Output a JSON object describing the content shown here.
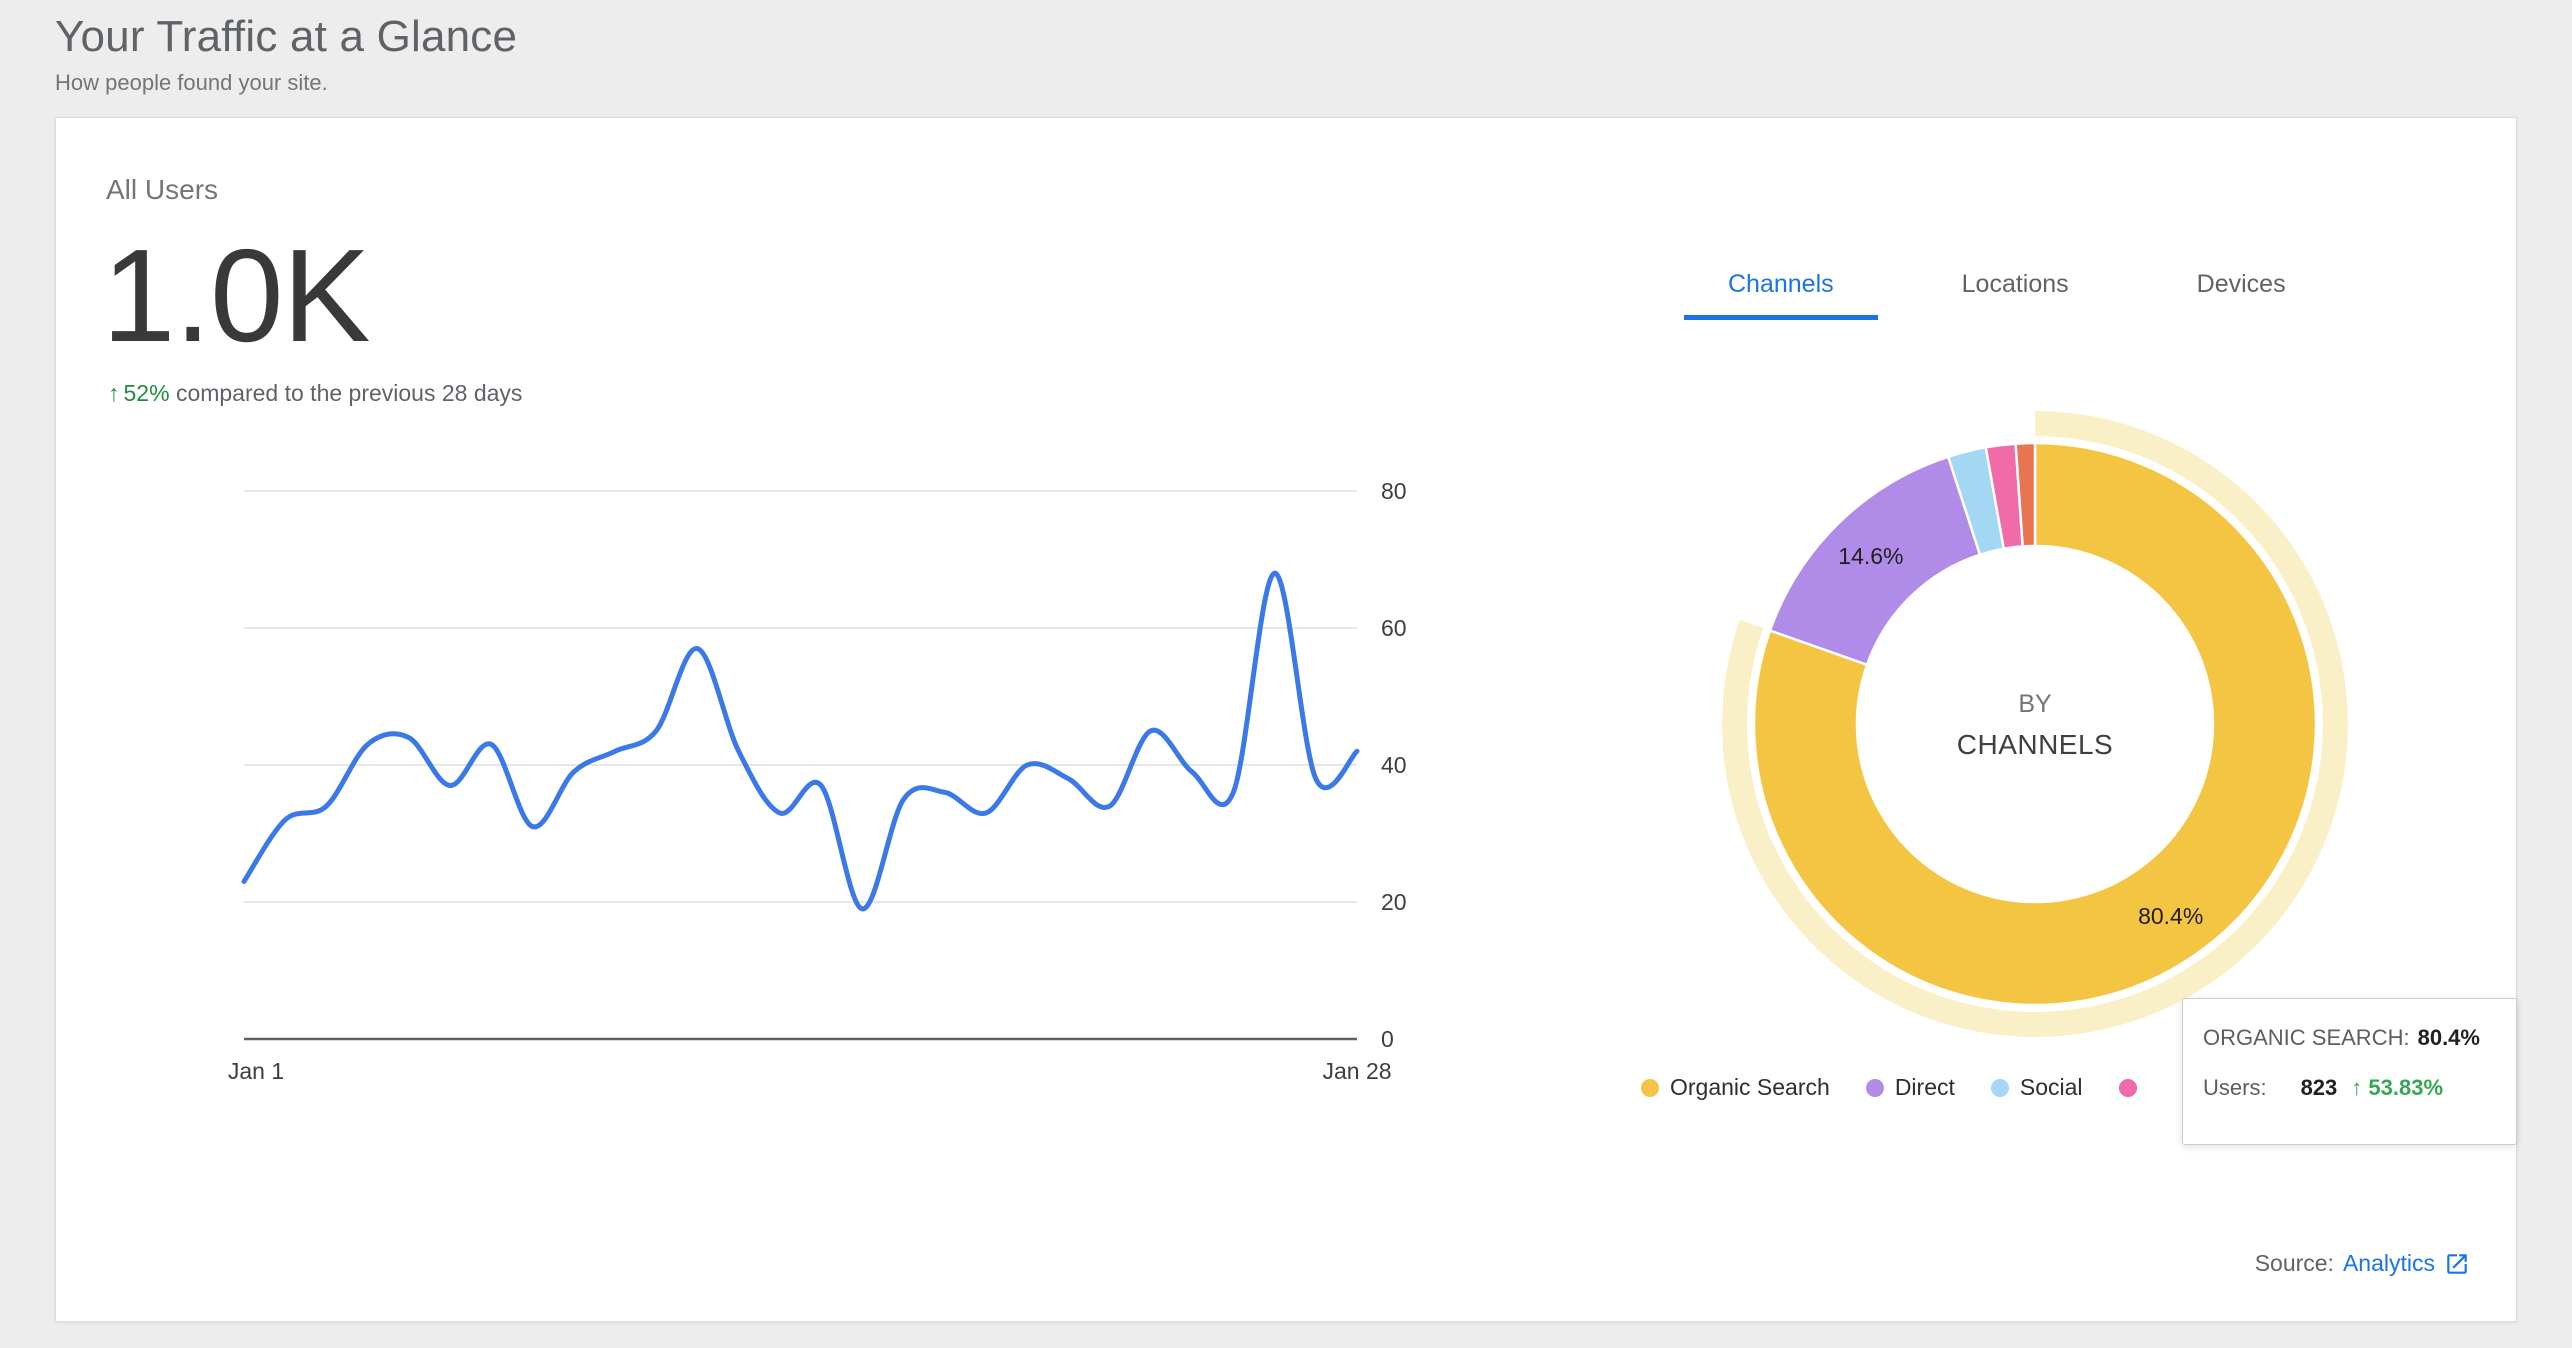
{
  "header": {
    "title": "Your Traffic at a Glance",
    "subtitle": "How people found your site."
  },
  "summary": {
    "metric_label": "All Users",
    "metric_value": "1.0K",
    "trend_arrow": "↑",
    "trend_percent": "52%",
    "trend_text": "compared to the previous 28 days"
  },
  "tabs": [
    {
      "label": "Channels",
      "active": true
    },
    {
      "label": "Locations",
      "active": false
    },
    {
      "label": "Devices",
      "active": false
    }
  ],
  "donut_center": {
    "line1": "BY",
    "line2": "CHANNELS"
  },
  "legend": [
    {
      "label": "Organic Search",
      "color": "#F4C542"
    },
    {
      "label": "Direct",
      "color": "#B18BE8"
    },
    {
      "label": "Social",
      "color": "#A3D7F4"
    },
    {
      "label": "",
      "color": "#F06BA8"
    }
  ],
  "tooltip": {
    "title_label": "ORGANIC SEARCH:",
    "title_value": "80.4%",
    "users_label": "Users:",
    "users_value": "823",
    "users_change_arrow": "↑",
    "users_change": "53.83%"
  },
  "source": {
    "prefix": "Source:",
    "link_text": "Analytics"
  },
  "colors": {
    "accent_blue": "#1a73e8",
    "positive_green": "#1e8e3e",
    "tooltip_green": "#34a853"
  },
  "chart_data": [
    {
      "type": "line",
      "title": "All Users over previous 28 days",
      "x_labels": [
        "Jan 1",
        "Jan 28"
      ],
      "days": 28,
      "values": [
        23,
        32,
        34,
        43,
        44,
        37,
        43,
        31,
        39,
        42,
        45,
        57,
        42,
        33,
        37,
        19,
        35,
        36,
        33,
        40,
        38,
        34,
        45,
        39,
        36,
        68,
        38,
        42
      ],
      "ylim": [
        0,
        80
      ],
      "yticks": [
        0,
        20,
        40,
        60,
        80
      ],
      "grid": "horizontal",
      "line_color": "#3B78E8",
      "legend_position": "none"
    },
    {
      "type": "pie",
      "donut": true,
      "title": "BY CHANNELS",
      "start_angle_deg": 0,
      "direction": "clockwise",
      "segments": [
        {
          "name": "Organic Search",
          "value": 80.4,
          "color": "#F4C542",
          "label": "80.4%",
          "highlighted": true
        },
        {
          "name": "Direct",
          "value": 14.6,
          "color": "#B18BE8",
          "label": "14.6%"
        },
        {
          "name": "Social",
          "value": 2.2,
          "color": "#A3D7F4"
        },
        {
          "name": "",
          "value": 1.7,
          "color": "#F06BA8"
        },
        {
          "name": "",
          "value": 1.1,
          "color": "#E97452"
        }
      ],
      "halo_color": "#FAF0C8"
    }
  ]
}
